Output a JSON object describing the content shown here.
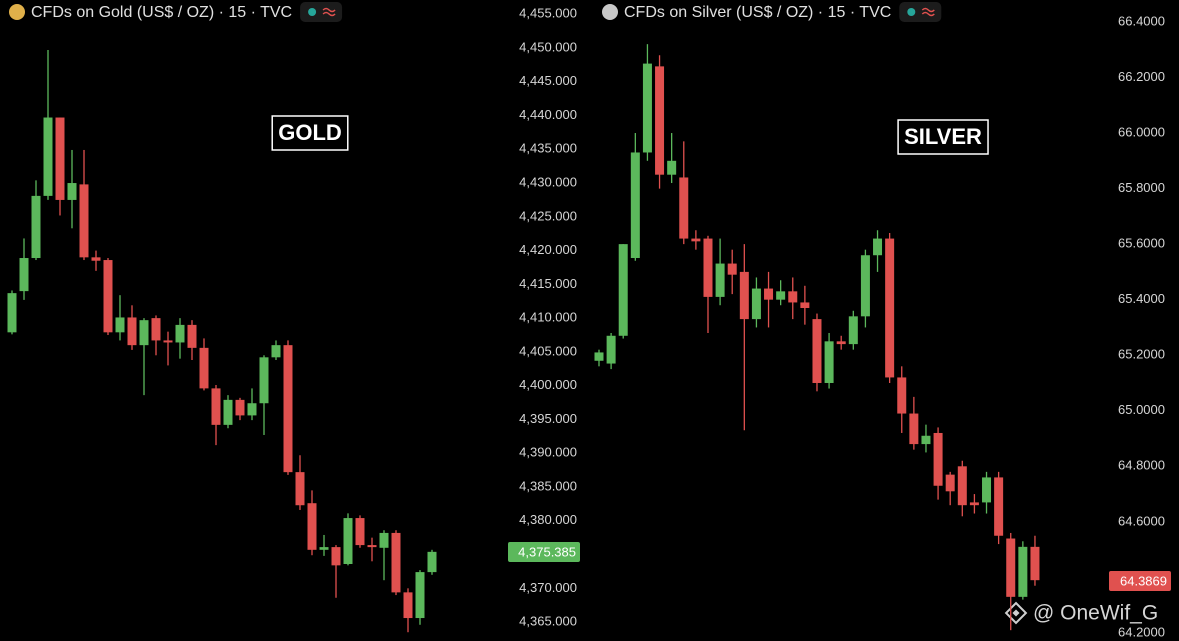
{
  "chart_data": [
    {
      "type": "candlestick",
      "title": "CFDs on Gold (US$ / OZ) · 15 · TVC",
      "annotation": "GOLD",
      "up_color": "#5cb85c",
      "down_color": "#e0514f",
      "open": [
        4407.9,
        4414.0,
        4418.9,
        4428.1,
        4439.7,
        4427.5,
        4429.8,
        4419.0,
        4418.6,
        4407.9,
        4410.1,
        4406.0,
        4410.0,
        4406.7,
        4406.4,
        4409.0,
        4405.6,
        4399.6,
        4394.2,
        4397.9,
        4395.6,
        4397.4,
        4404.2,
        4406.0,
        4387.2,
        4382.6,
        4375.7,
        4376.1,
        4373.6,
        4380.4,
        4376.4,
        4376.0,
        4378.2,
        4369.4,
        4365.6,
        4372.4
      ],
      "high": [
        4414.1,
        4421.8,
        4430.4,
        4449.7,
        4439.7,
        4434.9,
        4434.9,
        4420.0,
        4418.9,
        4413.4,
        4411.9,
        4410.0,
        4410.4,
        4408.0,
        4410.0,
        4409.7,
        4407.0,
        4400.1,
        4398.6,
        4398.2,
        4399.6,
        4404.5,
        4406.7,
        4406.7,
        4389.7,
        4384.5,
        4377.9,
        4376.4,
        4381.1,
        4380.8,
        4377.5,
        4378.6,
        4378.6,
        4370.0,
        4372.7,
        4375.7
      ],
      "low": [
        4407.6,
        4412.7,
        4418.6,
        4427.5,
        4425.2,
        4423.3,
        4418.6,
        4417.0,
        4407.5,
        4406.7,
        4405.3,
        4398.6,
        4404.5,
        4403.0,
        4404.0,
        4403.8,
        4399.3,
        4391.2,
        4393.7,
        4394.9,
        4394.9,
        4392.7,
        4403.8,
        4386.8,
        4381.6,
        4374.9,
        4374.8,
        4368.6,
        4373.4,
        4376.0,
        4374.0,
        4371.2,
        4369.0,
        4363.5,
        4364.6,
        4372.0
      ],
      "close": [
        4413.7,
        4418.9,
        4428.1,
        4439.7,
        4427.5,
        4430.0,
        4419.0,
        4418.5,
        4407.9,
        4410.1,
        4406.0,
        4409.7,
        4406.7,
        4406.4,
        4409.0,
        4405.6,
        4399.6,
        4394.2,
        4397.9,
        4395.6,
        4397.4,
        4404.2,
        4406.0,
        4387.2,
        4382.3,
        4375.7,
        4376.1,
        4373.4,
        4380.4,
        4376.4,
        4376.1,
        4378.2,
        4369.4,
        4365.6,
        4372.4,
        4375.4
      ],
      "ylim": [
        4362.2,
        4457.1
      ],
      "yticks": [
        {
          "value": 4365,
          "label": "4,365.000"
        },
        {
          "value": 4370,
          "label": "4,370.000"
        },
        {
          "value": 4375,
          "label": "4,375.000"
        },
        {
          "value": 4380,
          "label": "4,380.000"
        },
        {
          "value": 4385,
          "label": "4,385.000"
        },
        {
          "value": 4390,
          "label": "4,390.000"
        },
        {
          "value": 4395,
          "label": "4,395.000"
        },
        {
          "value": 4400,
          "label": "4,400.000"
        },
        {
          "value": 4405,
          "label": "4,405.000"
        },
        {
          "value": 4410,
          "label": "4,410.000"
        },
        {
          "value": 4415,
          "label": "4,415.000"
        },
        {
          "value": 4420,
          "label": "4,420.000"
        },
        {
          "value": 4425,
          "label": "4,425.000"
        },
        {
          "value": 4430,
          "label": "4,430.000"
        },
        {
          "value": 4435,
          "label": "4,435.000"
        },
        {
          "value": 4440,
          "label": "4,440.000"
        },
        {
          "value": 4445,
          "label": "4,445.000"
        },
        {
          "value": 4450,
          "label": "4,450.000"
        },
        {
          "value": 4455,
          "label": "4,455.000"
        }
      ],
      "last_price": {
        "value": 4375.385,
        "label": "4,375.385"
      },
      "last_price_color": "#5cb85c",
      "icon_color": "#e0b04a"
    },
    {
      "type": "candlestick",
      "title": "CFDs on Silver (US$ / OZ) · 15 · TVC",
      "annotation": "SILVER",
      "up_color": "#5cb85c",
      "down_color": "#e0514f",
      "open": [
        65.18,
        65.17,
        65.27,
        65.55,
        65.93,
        66.24,
        65.85,
        65.84,
        65.62,
        65.62,
        65.41,
        65.53,
        65.5,
        65.33,
        65.44,
        65.4,
        65.43,
        65.39,
        65.33,
        65.1,
        65.25,
        65.24,
        65.34,
        65.56,
        65.62,
        65.12,
        64.99,
        64.88,
        64.92,
        64.77,
        64.8,
        64.67,
        64.67,
        64.76,
        64.54,
        64.33,
        64.51
      ],
      "high": [
        65.22,
        65.28,
        65.6,
        66.0,
        66.32,
        66.28,
        66.0,
        65.97,
        65.65,
        65.63,
        65.62,
        65.58,
        65.6,
        65.48,
        65.5,
        65.47,
        65.48,
        65.45,
        65.35,
        65.28,
        65.27,
        65.36,
        65.58,
        65.65,
        65.64,
        65.16,
        65.05,
        64.95,
        64.94,
        64.78,
        64.82,
        64.7,
        64.78,
        64.78,
        64.56,
        64.53,
        64.55
      ],
      "low": [
        65.16,
        65.15,
        65.26,
        65.54,
        65.9,
        65.8,
        65.82,
        65.6,
        65.58,
        65.28,
        65.38,
        65.42,
        64.93,
        65.3,
        65.3,
        65.38,
        65.33,
        65.31,
        65.07,
        65.08,
        65.22,
        65.22,
        65.3,
        65.5,
        65.1,
        64.92,
        64.86,
        64.85,
        64.68,
        64.66,
        64.62,
        64.63,
        64.63,
        64.52,
        64.21,
        64.32,
        64.37
      ],
      "close": [
        65.21,
        65.27,
        65.6,
        65.93,
        66.25,
        65.85,
        65.9,
        65.62,
        65.61,
        65.41,
        65.53,
        65.49,
        65.33,
        65.44,
        65.4,
        65.43,
        65.39,
        65.37,
        65.1,
        65.25,
        65.24,
        65.34,
        65.56,
        65.62,
        65.12,
        64.99,
        64.88,
        64.91,
        64.73,
        64.71,
        64.66,
        64.66,
        64.76,
        64.55,
        64.33,
        64.51,
        64.39
      ],
      "ylim": [
        64.171,
        66.479
      ],
      "yticks": [
        {
          "value": 64.2,
          "label": "64.2000"
        },
        {
          "value": 64.4,
          "label": "64.4000"
        },
        {
          "value": 64.6,
          "label": "64.6000"
        },
        {
          "value": 64.8,
          "label": "64.8000"
        },
        {
          "value": 65.0,
          "label": "65.0000"
        },
        {
          "value": 65.2,
          "label": "65.2000"
        },
        {
          "value": 65.4,
          "label": "65.4000"
        },
        {
          "value": 65.6,
          "label": "65.6000"
        },
        {
          "value": 65.8,
          "label": "65.8000"
        },
        {
          "value": 66.0,
          "label": "66.0000"
        },
        {
          "value": 66.2,
          "label": "66.2000"
        },
        {
          "value": 66.4,
          "label": "66.4000"
        }
      ],
      "last_price": 64.3869,
      "last_price_color": "#e0514f",
      "icon_color": "#c8c8c8"
    }
  ],
  "watermark": "@ OneWif_G"
}
